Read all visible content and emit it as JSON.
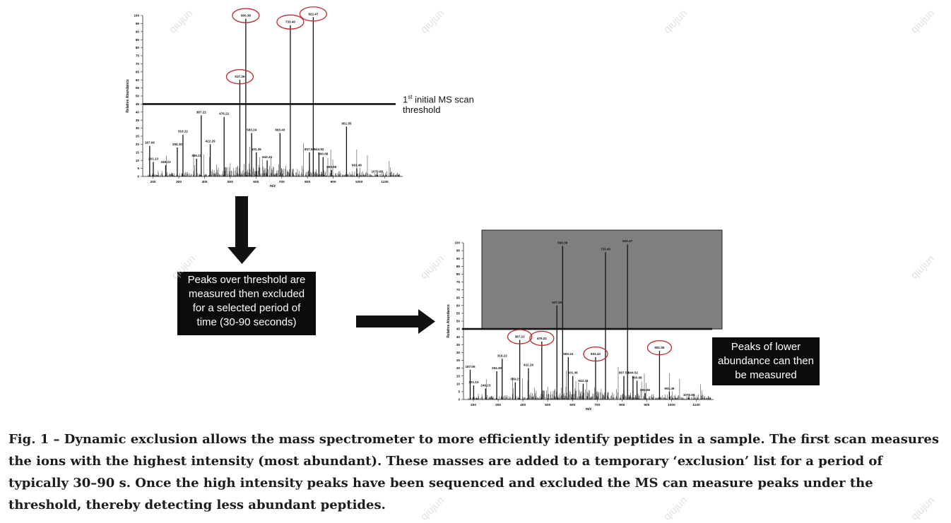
{
  "chart_data": [
    {
      "type": "line",
      "xlabel": "m/z",
      "ylabel": "Relative Abundance",
      "xlim": [
        160,
        1170
      ],
      "ylim": [
        0,
        100
      ],
      "xticks": [
        200,
        300,
        400,
        500,
        600,
        700,
        800,
        900,
        1000,
        1100
      ],
      "yticks": [
        0,
        5,
        10,
        15,
        20,
        25,
        30,
        35,
        40,
        45,
        50,
        55,
        60,
        65,
        70,
        75,
        80,
        85,
        90,
        95,
        100
      ],
      "threshold": 45,
      "threshold_label_sup": "st",
      "threshold_label_pre": "1",
      "threshold_label_post": " initial MS scan",
      "threshold_label_line2": "threshold",
      "peaks": [
        {
          "mz": 187.06,
          "y": 19,
          "label": "187.06"
        },
        {
          "mz": 201.13,
          "y": 9,
          "label": "201.13"
        },
        {
          "mz": 249.23,
          "y": 7,
          "label": "249.23"
        },
        {
          "mz": 294.3,
          "y": 18,
          "label": "294.30"
        },
        {
          "mz": 316.22,
          "y": 26,
          "label": "316.22"
        },
        {
          "mz": 369.21,
          "y": 11,
          "label": "369.21"
        },
        {
          "mz": 387.22,
          "y": 38,
          "label": "387.22"
        },
        {
          "mz": 422.29,
          "y": 20,
          "label": "422.29"
        },
        {
          "mz": 476.22,
          "y": 37,
          "label": "476.22"
        },
        {
          "mz": 537.26,
          "y": 60,
          "label": "537.26"
        },
        {
          "mz": 560.38,
          "y": 98,
          "label": "560.38"
        },
        {
          "mz": 583.24,
          "y": 27,
          "label": "583.24"
        },
        {
          "mz": 601.36,
          "y": 15,
          "label": "601.36"
        },
        {
          "mz": 643.34,
          "y": 10,
          "label": "643.34"
        },
        {
          "mz": 693.43,
          "y": 27,
          "label": "693.43"
        },
        {
          "mz": 733.4,
          "y": 94,
          "label": "733.40"
        },
        {
          "mz": 807.58,
          "y": 15,
          "label": "807.58"
        },
        {
          "mz": 822.47,
          "y": 99,
          "label": "822.47"
        },
        {
          "mz": 844.52,
          "y": 15,
          "label": "844.52"
        },
        {
          "mz": 860.68,
          "y": 12,
          "label": "860.68"
        },
        {
          "mz": 893.56,
          "y": 4,
          "label": "893.56"
        },
        {
          "mz": 951.55,
          "y": 31,
          "label": "951.55"
        },
        {
          "mz": 991.46,
          "y": 5,
          "label": "991.46"
        },
        {
          "mz": 1070.68,
          "y": 1,
          "label": "1070.68"
        }
      ]
    }
  ],
  "arrow_box_text": "Peaks over threshold are measured then excluded for a selected period of time (30-90 seconds)",
  "right_box_text": "Peaks of lower abundance can then be measured",
  "caption": "Fig. 1 – Dynamic exclusion allows the mass spectrometer to more efficiently identify peptides in a sample. The first scan measures the ions with the highest intensity (most abundant). These masses are added to a temporary ‘exclusion’ list for a period of typically 30–90 s. Once the high intensity peaks have been sequenced and excluded the MS can measure peaks under the threshold, thereby detecting less abundant peptides.",
  "watermark": "qiujun",
  "colors": {
    "circle": "#c0282d",
    "shade": "#7f7f7f",
    "box": "#0b0b0b"
  }
}
